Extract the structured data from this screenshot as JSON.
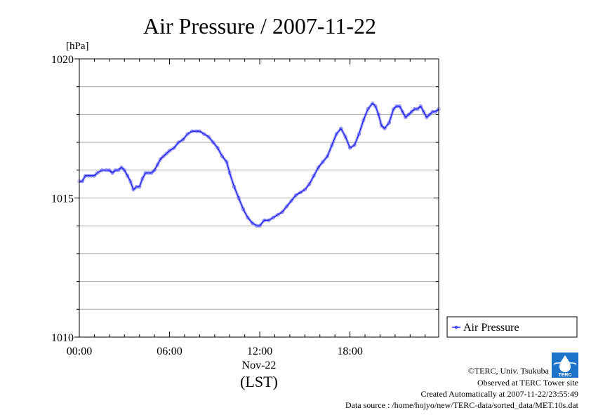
{
  "chart_data": {
    "type": "line",
    "title": "Air Pressure / 2007-11-22",
    "ylabel": "[hPa]",
    "ylim": [
      1010,
      1020
    ],
    "yticks": [
      1010,
      1015,
      1020
    ],
    "y_minor_step": 1,
    "xlim": [
      0,
      23.9
    ],
    "xticks": [
      {
        "value": 0,
        "label": "00:00"
      },
      {
        "value": 6,
        "label": "06:00"
      },
      {
        "value": 12,
        "label": "12:00"
      },
      {
        "value": 18,
        "label": "18:00"
      }
    ],
    "xdate": "Nov-22",
    "xunit": "(LST)",
    "grid": true,
    "legend_position": "right",
    "series": [
      {
        "name": "Air Pressure",
        "color": "#2222ee",
        "x": [
          0.0,
          0.2,
          0.4,
          0.6,
          0.8,
          1.0,
          1.2,
          1.5,
          1.8,
          2.0,
          2.2,
          2.4,
          2.6,
          2.8,
          3.0,
          3.2,
          3.4,
          3.6,
          3.8,
          4.0,
          4.2,
          4.4,
          4.6,
          4.8,
          5.0,
          5.2,
          5.4,
          5.6,
          5.8,
          6.0,
          6.3,
          6.6,
          6.9,
          7.2,
          7.5,
          7.8,
          8.0,
          8.3,
          8.6,
          8.9,
          9.2,
          9.5,
          9.8,
          10.0,
          10.3,
          10.6,
          10.9,
          11.2,
          11.5,
          11.8,
          12.0,
          12.3,
          12.6,
          12.9,
          13.2,
          13.5,
          13.8,
          14.1,
          14.4,
          14.7,
          15.0,
          15.3,
          15.6,
          15.9,
          16.2,
          16.5,
          16.8,
          17.1,
          17.4,
          17.7,
          18.0,
          18.3,
          18.6,
          18.9,
          19.2,
          19.5,
          19.7,
          19.9,
          20.1,
          20.3,
          20.6,
          20.9,
          21.1,
          21.3,
          21.5,
          21.7,
          21.9,
          22.1,
          22.3,
          22.5,
          22.7,
          22.9,
          23.1,
          23.3,
          23.5,
          23.7,
          23.9
        ],
        "y": [
          1015.6,
          1015.6,
          1015.8,
          1015.8,
          1015.8,
          1015.8,
          1015.9,
          1016.0,
          1016.0,
          1016.0,
          1015.9,
          1016.0,
          1016.0,
          1016.1,
          1016.0,
          1015.8,
          1015.6,
          1015.3,
          1015.4,
          1015.4,
          1015.7,
          1015.9,
          1015.9,
          1015.9,
          1016.0,
          1016.2,
          1016.4,
          1016.5,
          1016.6,
          1016.7,
          1016.8,
          1017.0,
          1017.1,
          1017.3,
          1017.4,
          1017.4,
          1017.4,
          1017.3,
          1017.2,
          1017.0,
          1016.8,
          1016.5,
          1016.3,
          1015.9,
          1015.4,
          1015.0,
          1014.6,
          1014.3,
          1014.1,
          1014.0,
          1014.0,
          1014.2,
          1014.2,
          1014.3,
          1014.4,
          1014.5,
          1014.7,
          1014.9,
          1015.1,
          1015.2,
          1015.3,
          1015.5,
          1015.8,
          1016.1,
          1016.3,
          1016.5,
          1016.9,
          1017.3,
          1017.5,
          1017.2,
          1016.8,
          1016.9,
          1017.3,
          1017.8,
          1018.2,
          1018.4,
          1018.3,
          1018.0,
          1017.6,
          1017.5,
          1017.7,
          1018.2,
          1018.3,
          1018.3,
          1018.1,
          1017.9,
          1018.0,
          1018.1,
          1018.2,
          1018.2,
          1018.3,
          1018.1,
          1017.9,
          1018.0,
          1018.1,
          1018.1,
          1018.2
        ]
      }
    ]
  },
  "credits": {
    "copyright": "©TERC, Univ. Tsukuba",
    "site": "Observed at TERC Tower site",
    "created": "Created Automatically at 2007-11-22/23:55:49",
    "source": "Data source : /home/hojyo/new/TERC-data/sorted_data/MET.10s.dat",
    "logo_text": "TERC"
  }
}
